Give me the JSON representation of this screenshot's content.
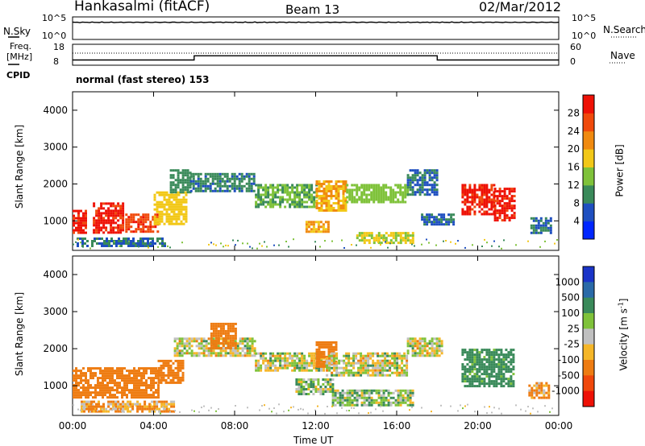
{
  "header": {
    "station": "Hankasalmi (fitACF)",
    "beam": "Beam 13",
    "date": "02/Mar/2012"
  },
  "left_labels": {
    "nsky": "N.Sky",
    "freq_line1": "Freq.",
    "freq_line2": "[MHz]",
    "cpid": "CPID"
  },
  "right_labels": {
    "nsearch": "N.Search",
    "nave": "Nave"
  },
  "panel_ticks": {
    "nsky_top": "10^5",
    "nsky_bottom": "10^0",
    "freq_top": "18",
    "freq_bottom": "8",
    "nave_top": "60",
    "nave_bottom": "0"
  },
  "cpid_text": "normal (fast stereo) 153",
  "axes": {
    "ylabel": "Slant Range [km]",
    "xlabel": "Time UT",
    "y_ticks": [
      "1000",
      "2000",
      "3000",
      "4000"
    ],
    "x_ticks": [
      "00:00",
      "04:00",
      "08:00",
      "12:00",
      "16:00",
      "20:00",
      "00:00"
    ]
  },
  "power_colorbar": {
    "label": "Power [dB]",
    "ticks": [
      "4",
      "8",
      "12",
      "16",
      "20",
      "24",
      "28"
    ],
    "colors": [
      "#0026ff",
      "#1f4fc0",
      "#3a8a5a",
      "#7fc23a",
      "#f2c818",
      "#f08a10",
      "#f04a0c",
      "#ee1106"
    ]
  },
  "velocity_colorbar": {
    "label": "Velocity [m s",
    "label_sup": "-1",
    "label_close": "]",
    "ticks": [
      "1000",
      "500",
      "100",
      "25",
      "-25",
      "-100",
      "-500",
      "-1000"
    ],
    "colors": [
      "#1a34c8",
      "#2a6aa8",
      "#3a8a5a",
      "#7fc23a",
      "#c0c0c0",
      "#f5b628",
      "#ee7c12",
      "#f0480c",
      "#ee1106"
    ]
  },
  "chart_data": [
    {
      "type": "line",
      "title": "N.Sky",
      "x": [
        0,
        24
      ],
      "series": [
        {
          "values": [
            3.8,
            3.9
          ]
        }
      ],
      "ylim": [
        0,
        5
      ]
    },
    {
      "type": "line",
      "title": "Freq. [MHz]",
      "x": [
        0,
        6,
        6,
        18,
        18,
        24
      ],
      "series": [
        {
          "values": [
            10.5,
            10.5,
            12.5,
            12.5,
            10.5,
            10.5
          ]
        }
      ],
      "ylim": [
        8,
        18
      ]
    },
    {
      "type": "heatmap",
      "title": "Power [dB]",
      "xlabel": "Time UT",
      "ylabel": "Slant Range [km]",
      "xlim": [
        0,
        24
      ],
      "ylim": [
        200,
        4500
      ],
      "clim": [
        0,
        30
      ],
      "patches": [
        {
          "t0": 0.0,
          "t1": 0.7,
          "r0": 700,
          "r1": 1300,
          "value": 29
        },
        {
          "t0": 1.0,
          "t1": 2.5,
          "r0": 700,
          "r1": 1500,
          "value": 29
        },
        {
          "t0": 2.6,
          "t1": 4.2,
          "r0": 700,
          "r1": 1200,
          "value": 27
        },
        {
          "t0": 4.0,
          "t1": 5.6,
          "r0": 900,
          "r1": 1800,
          "value": 18
        },
        {
          "t0": 4.8,
          "t1": 5.8,
          "r0": 1800,
          "r1": 2400,
          "value": 10
        },
        {
          "t0": 0.2,
          "t1": 4.5,
          "r0": 300,
          "r1": 550,
          "value": 8
        },
        {
          "t0": 5.8,
          "t1": 9.0,
          "r0": 1800,
          "r1": 2300,
          "value": 9
        },
        {
          "t0": 9.0,
          "t1": 12.0,
          "r0": 1400,
          "r1": 2000,
          "value": 12
        },
        {
          "t0": 12.0,
          "t1": 13.5,
          "r0": 1300,
          "r1": 2100,
          "value": 20
        },
        {
          "t0": 13.5,
          "t1": 16.5,
          "r0": 1500,
          "r1": 2000,
          "value": 14
        },
        {
          "t0": 16.5,
          "t1": 18.0,
          "r0": 1700,
          "r1": 2400,
          "value": 8
        },
        {
          "t0": 11.5,
          "t1": 12.6,
          "r0": 700,
          "r1": 1000,
          "value": 20
        },
        {
          "t0": 14.0,
          "t1": 16.8,
          "r0": 400,
          "r1": 700,
          "value": 16
        },
        {
          "t0": 17.2,
          "t1": 18.8,
          "r0": 900,
          "r1": 1200,
          "value": 8
        },
        {
          "t0": 19.2,
          "t1": 20.8,
          "r0": 1200,
          "r1": 2000,
          "value": 29
        },
        {
          "t0": 20.8,
          "t1": 21.8,
          "r0": 1000,
          "r1": 1900,
          "value": 29
        },
        {
          "t0": 22.6,
          "t1": 23.6,
          "r0": 700,
          "r1": 1100,
          "value": 8
        }
      ]
    },
    {
      "type": "heatmap",
      "title": "Velocity [m s-1]",
      "xlabel": "Time UT",
      "ylabel": "Slant Range [km]",
      "xlim": [
        0,
        24
      ],
      "ylim": [
        200,
        4500
      ],
      "clim": [
        -1000,
        1000
      ],
      "patches": [
        {
          "t0": 0.0,
          "t1": 4.2,
          "r0": 700,
          "r1": 1500,
          "value": -250
        },
        {
          "t0": 4.2,
          "t1": 5.4,
          "r0": 1100,
          "r1": 1700,
          "value": -250
        },
        {
          "t0": 0.4,
          "t1": 5.0,
          "r0": 300,
          "r1": 600,
          "value": -100
        },
        {
          "t0": 5.0,
          "t1": 9.0,
          "r0": 1800,
          "r1": 2300,
          "value": 0
        },
        {
          "t0": 6.8,
          "t1": 8.0,
          "r0": 2000,
          "r1": 2700,
          "value": -250
        },
        {
          "t0": 9.0,
          "t1": 12.5,
          "r0": 1400,
          "r1": 1900,
          "value": 0
        },
        {
          "t0": 12.0,
          "t1": 13.0,
          "r0": 1500,
          "r1": 2200,
          "value": -250
        },
        {
          "t0": 12.5,
          "t1": 16.5,
          "r0": 1300,
          "r1": 1900,
          "value": 0
        },
        {
          "t0": 16.5,
          "t1": 18.2,
          "r0": 1800,
          "r1": 2300,
          "value": 0
        },
        {
          "t0": 12.8,
          "t1": 16.8,
          "r0": 500,
          "r1": 900,
          "value": 60
        },
        {
          "t0": 11.0,
          "t1": 12.8,
          "r0": 800,
          "r1": 1200,
          "value": 60
        },
        {
          "t0": 19.2,
          "t1": 21.8,
          "r0": 1000,
          "r1": 2000,
          "value": 200
        },
        {
          "t0": 22.5,
          "t1": 23.5,
          "r0": 700,
          "r1": 1100,
          "value": -100
        }
      ]
    }
  ]
}
